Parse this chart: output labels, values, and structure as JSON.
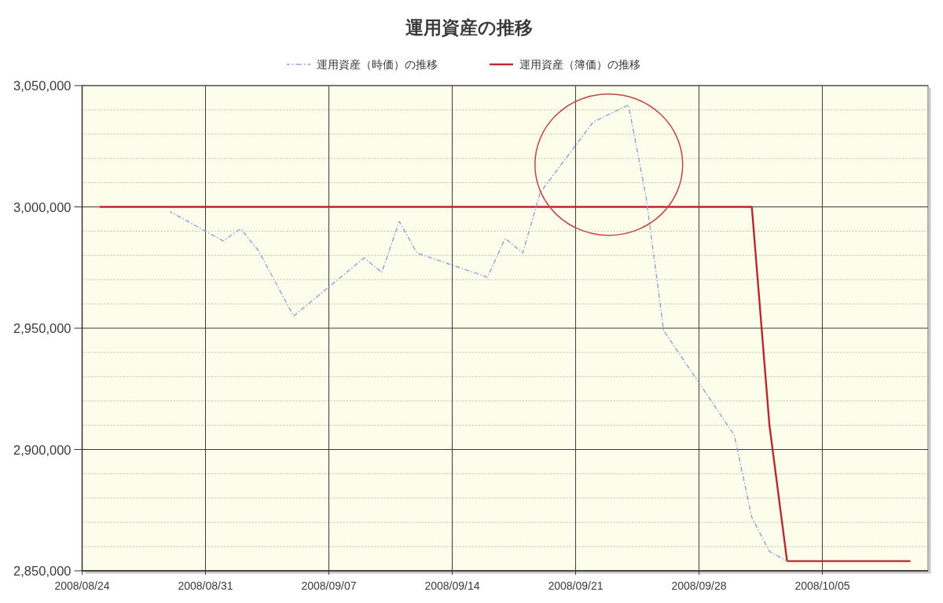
{
  "chart_data": {
    "type": "line",
    "title": "運用資産の推移",
    "xlim": [
      "2008-08-24",
      "2008-10-11"
    ],
    "xticks": [
      {
        "value": "2008-08-24",
        "label": "2008/08/24"
      },
      {
        "value": "2008-08-31",
        "label": "2008/08/31"
      },
      {
        "value": "2008-09-07",
        "label": "2008/09/07"
      },
      {
        "value": "2008-09-14",
        "label": "2008/09/14"
      },
      {
        "value": "2008-09-21",
        "label": "2008/09/21"
      },
      {
        "value": "2008-09-28",
        "label": "2008/09/28"
      },
      {
        "value": "2008-10-05",
        "label": "2008/10/05"
      }
    ],
    "ylim": [
      2850000,
      3050000
    ],
    "yticks": [
      {
        "value": 2850000,
        "label": "2,850,000"
      },
      {
        "value": 2860000,
        "label": null
      },
      {
        "value": 2870000,
        "label": null
      },
      {
        "value": 2880000,
        "label": null
      },
      {
        "value": 2890000,
        "label": null
      },
      {
        "value": 2900000,
        "label": "2,900,000"
      },
      {
        "value": 2910000,
        "label": null
      },
      {
        "value": 2920000,
        "label": null
      },
      {
        "value": 2930000,
        "label": null
      },
      {
        "value": 2940000,
        "label": null
      },
      {
        "value": 2950000,
        "label": "2,950,000"
      },
      {
        "value": 2960000,
        "label": null
      },
      {
        "value": 2970000,
        "label": null
      },
      {
        "value": 2980000,
        "label": null
      },
      {
        "value": 2990000,
        "label": null
      },
      {
        "value": 3000000,
        "label": "3,000,000"
      },
      {
        "value": 3010000,
        "label": null
      },
      {
        "value": 3020000,
        "label": null
      },
      {
        "value": 3030000,
        "label": null
      },
      {
        "value": 3040000,
        "label": null
      },
      {
        "value": 3050000,
        "label": "3,050,000"
      }
    ],
    "grid": true,
    "legend": "top",
    "marker": "none",
    "series": [
      {
        "name": "運用資産（時価）の推移",
        "color": "#8aa4d6",
        "line_style": "dashed",
        "x": [
          "2008-08-29",
          "2008-09-01",
          "2008-09-02",
          "2008-09-03",
          "2008-09-05",
          "2008-09-09",
          "2008-09-10",
          "2008-09-11",
          "2008-09-12",
          "2008-09-16",
          "2008-09-17",
          "2008-09-18",
          "2008-09-19",
          "2008-09-22",
          "2008-09-24",
          "2008-09-25",
          "2008-09-26",
          "2008-09-30",
          "2008-10-01",
          "2008-10-02",
          "2008-10-03"
        ],
        "values": [
          2998000,
          2986000,
          2991000,
          2982000,
          2955000,
          2979000,
          2973000,
          2994000,
          2981000,
          2971000,
          2987000,
          2981000,
          3006000,
          3035000,
          3042000,
          3004000,
          2949000,
          2906000,
          2872000,
          2858000,
          2854000
        ]
      },
      {
        "name": "運用資産（簿価）の推移",
        "color": "#b8282e",
        "line_style": "solid",
        "x": [
          "2008-08-25",
          "2008-10-01",
          "2008-10-02",
          "2008-10-03",
          "2008-10-10"
        ],
        "values": [
          3000000,
          3000000,
          2910000,
          2854000,
          2854000
        ]
      }
    ]
  }
}
